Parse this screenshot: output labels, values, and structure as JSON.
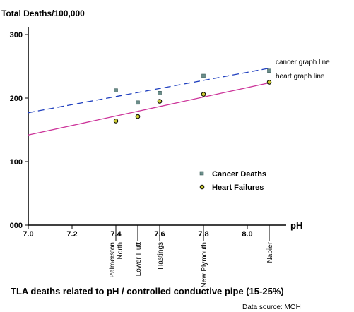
{
  "chart_data": {
    "type": "scatter",
    "title": "TLA deaths related to pH  /  controlled conductive pipe (15-25%)",
    "ylabel": "Total Deaths/100,000",
    "xlabel": "pH",
    "source": "Data source: MOH",
    "xlim": [
      7.0,
      8.1
    ],
    "ylim": [
      0,
      300
    ],
    "x_ticks": [
      "7.0",
      "7.2",
      "7.4",
      "7.6",
      "7.8",
      "8.0"
    ],
    "y_ticks": [
      "000",
      "100",
      "200",
      "300"
    ],
    "grid": false,
    "legend_position": "center-right",
    "towns": [
      {
        "name": "Palmerston North",
        "ph": 7.4
      },
      {
        "name": "Lower Hutt",
        "ph": 7.5
      },
      {
        "name": "Hastings",
        "ph": 7.6
      },
      {
        "name": "New Plymouth",
        "ph": 7.8
      },
      {
        "name": "Napier",
        "ph": 8.1
      }
    ],
    "series": [
      {
        "name": "Cancer Deaths",
        "marker": "square",
        "color": "#6b8e8a",
        "points": [
          {
            "x": 7.4,
            "y": 212
          },
          {
            "x": 7.5,
            "y": 193
          },
          {
            "x": 7.6,
            "y": 208
          },
          {
            "x": 7.8,
            "y": 235
          },
          {
            "x": 8.1,
            "y": 243
          }
        ]
      },
      {
        "name": "Heart Failures",
        "marker": "circle",
        "color": "#cccc33",
        "points": [
          {
            "x": 7.4,
            "y": 164
          },
          {
            "x": 7.5,
            "y": 171
          },
          {
            "x": 7.6,
            "y": 195
          },
          {
            "x": 7.8,
            "y": 206
          },
          {
            "x": 8.1,
            "y": 225
          }
        ]
      }
    ],
    "trend_lines": [
      {
        "label": "cancer graph line",
        "color": "#1f3fbf",
        "style": "dashed",
        "start": [
          7.0,
          177
        ],
        "end": [
          8.1,
          247
        ]
      },
      {
        "label": "heart graph line",
        "color": "#cc3399",
        "style": "solid",
        "start": [
          7.0,
          142
        ],
        "end": [
          8.1,
          224
        ]
      }
    ]
  }
}
